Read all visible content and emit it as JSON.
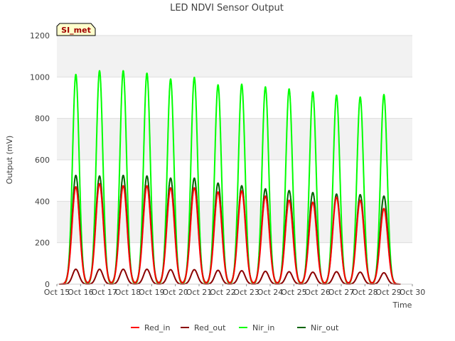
{
  "chart_data": {
    "type": "line",
    "title": "LED NDVI Sensor Output",
    "badge": "SI_met",
    "xlabel": "Time",
    "ylabel": "Output (mV)",
    "xlim": [
      15,
      30
    ],
    "ylim": [
      0,
      1200
    ],
    "x_tick_labels": [
      "Oct 15",
      "Oct 16",
      "Oct 17",
      "Oct 18",
      "Oct 19",
      "Oct 20",
      "Oct 21",
      "Oct 22",
      "Oct 23",
      "Oct 24",
      "Oct 25",
      "Oct 26",
      "Oct 27",
      "Oct 28",
      "Oct 29",
      "Oct 30"
    ],
    "y_ticks": [
      0,
      200,
      400,
      600,
      800,
      1000,
      1200
    ],
    "grid": true,
    "legend_position": "bottom",
    "day_peak_x": [
      15.8,
      16.8,
      17.8,
      18.8,
      19.8,
      20.8,
      21.8,
      22.8,
      23.8,
      24.8,
      25.8,
      26.8,
      27.8,
      28.8
    ],
    "series": [
      {
        "name": "Red_in",
        "color": "#ff0000",
        "daily_peaks": [
          470,
          485,
          475,
          475,
          465,
          465,
          445,
          450,
          425,
          405,
          395,
          420,
          405,
          365
        ]
      },
      {
        "name": "Red_out",
        "color": "#8b0000",
        "daily_peaks": [
          72,
          72,
          72,
          72,
          70,
          70,
          67,
          65,
          62,
          60,
          58,
          60,
          58,
          55
        ]
      },
      {
        "name": "Nir_in",
        "color": "#00ff00",
        "daily_peaks": [
          1012,
          1030,
          1030,
          1018,
          990,
          998,
          962,
          965,
          952,
          942,
          928,
          912,
          903,
          915
        ]
      },
      {
        "name": "Nir_out",
        "color": "#006400",
        "daily_peaks": [
          525,
          522,
          525,
          522,
          512,
          512,
          488,
          475,
          460,
          452,
          442,
          435,
          432,
          425
        ]
      }
    ]
  }
}
